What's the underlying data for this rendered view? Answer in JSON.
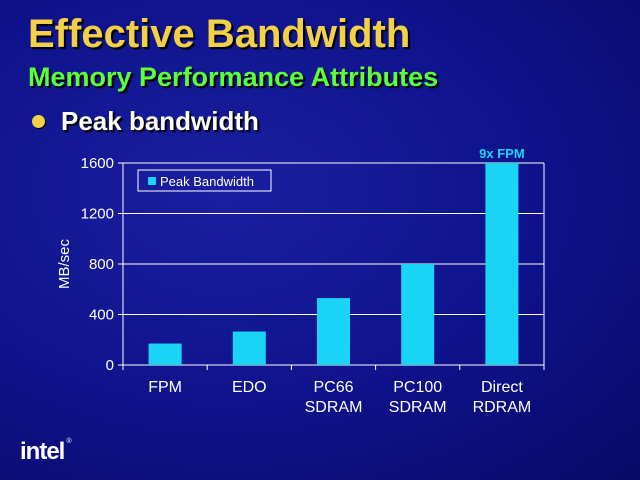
{
  "slide": {
    "title": "Effective Bandwidth",
    "subtitle": "Memory Performance Attributes",
    "bullet": "Peak bandwidth",
    "logo_text": "intel",
    "logo_mark": "®"
  },
  "colors": {
    "background": "#0e128a",
    "title": "#f2d048",
    "subtitle": "#5cff3a",
    "bar": "#19d4f4",
    "annotation": "#19d4f4"
  },
  "chart_data": {
    "type": "bar",
    "title": "",
    "xlabel": "",
    "ylabel": "MB/sec",
    "ylim": [
      0,
      1600
    ],
    "yticks": [
      0,
      400,
      800,
      1200,
      1600
    ],
    "grid": true,
    "legend_position": "top-left",
    "categories": [
      [
        "FPM"
      ],
      [
        "EDO"
      ],
      [
        "PC66",
        "SDRAM"
      ],
      [
        "PC100",
        "SDRAM"
      ],
      [
        "Direct",
        "RDRAM"
      ]
    ],
    "series": [
      {
        "name": "Peak Bandwidth",
        "values": [
          170,
          265,
          530,
          800,
          1600
        ]
      }
    ],
    "annotations": [
      {
        "category_index": 4,
        "text": "9x FPM"
      }
    ]
  }
}
